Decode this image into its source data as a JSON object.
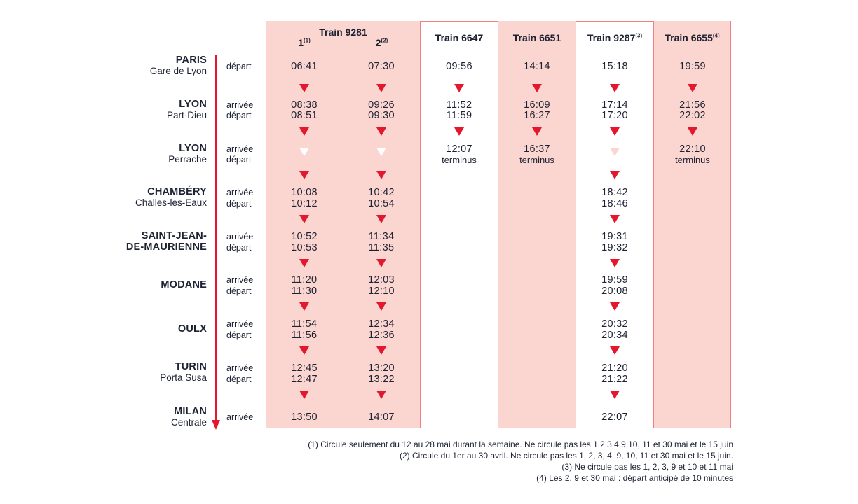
{
  "header": {
    "t9281": "Train 9281",
    "t9281_sub1": "1",
    "t9281_sub1_note": "(1)",
    "t9281_sub2": "2",
    "t9281_sub2_note": "(2)",
    "t6647": "Train 6647",
    "t6651": "Train 6651",
    "t9287": "Train 9287",
    "t9287_note": "(3)",
    "t6655": "Train 6655",
    "t6655_note": "(4)"
  },
  "labels": {
    "depart": "départ",
    "arrivee": "arrivée",
    "terminus": "terminus"
  },
  "stations": {
    "paris": {
      "name": "PARIS",
      "sub": "Gare de Lyon"
    },
    "lyon_pd": {
      "name": "LYON",
      "sub": "Part-Dieu"
    },
    "lyon_pe": {
      "name": "LYON",
      "sub": "Perrache"
    },
    "chambery": {
      "name": "CHAMBÉRY",
      "sub": "Challes-les-Eaux"
    },
    "stjean": {
      "name": "SAINT-JEAN-",
      "name2": "DE-MAURIENNE"
    },
    "modane": {
      "name": "MODANE"
    },
    "oulx": {
      "name": "OULX"
    },
    "turin": {
      "name": "TURIN",
      "sub": "Porta Susa"
    },
    "milan": {
      "name": "MILAN",
      "sub": "Centrale"
    }
  },
  "times": {
    "c1": {
      "paris_d": "06:41",
      "lyonpd_a": "08:38",
      "lyonpd_d": "08:51",
      "chambery_a": "10:08",
      "chambery_d": "10:12",
      "stjean_a": "10:52",
      "stjean_d": "10:53",
      "modane_a": "11:20",
      "modane_d": "11:30",
      "oulx_a": "11:54",
      "oulx_d": "11:56",
      "turin_a": "12:45",
      "turin_d": "12:47",
      "milan_a": "13:50"
    },
    "c2": {
      "paris_d": "07:30",
      "lyonpd_a": "09:26",
      "lyonpd_d": "09:30",
      "chambery_a": "10:42",
      "chambery_d": "10:54",
      "stjean_a": "11:34",
      "stjean_d": "11:35",
      "modane_a": "12:03",
      "modane_d": "12:10",
      "oulx_a": "12:34",
      "oulx_d": "12:36",
      "turin_a": "13:20",
      "turin_d": "13:22",
      "milan_a": "14:07"
    },
    "c3": {
      "paris_d": "09:56",
      "lyonpd_a": "11:52",
      "lyonpd_d": "11:59",
      "lyonpe_a": "12:07"
    },
    "c4": {
      "paris_d": "14:14",
      "lyonpd_a": "16:09",
      "lyonpd_d": "16:27",
      "lyonpe_a": "16:37"
    },
    "c5": {
      "paris_d": "15:18",
      "lyonpd_a": "17:14",
      "lyonpd_d": "17:20",
      "chambery_a": "18:42",
      "chambery_d": "18:46",
      "stjean_a": "19:31",
      "stjean_d": "19:32",
      "modane_a": "19:59",
      "modane_d": "20:08",
      "oulx_a": "20:32",
      "oulx_d": "20:34",
      "turin_a": "21:20",
      "turin_d": "21:22",
      "milan_a": "22:07"
    },
    "c6": {
      "paris_d": "19:59",
      "lyonpd_a": "21:56",
      "lyonpd_d": "22:02",
      "lyonpe_a": "22:10"
    }
  },
  "notes": [
    "(1) Circule seulement du 12 au 28 mai durant la semaine. Ne circule pas les 1,2,3,4,9,10, 11 et 30 mai et le 15 juin",
    "(2) Circule du 1er au 30 avril. Ne circule pas les 1, 2, 3, 4, 9, 10, 11 et 30 mai et le 15 juin.",
    "(3) Ne circule pas les 1, 2, 3, 9 et 10 et 11 mai",
    "(4) Les 2, 9 et 30 mai : départ anticipé de 10 minutes"
  ],
  "colors": {
    "accent": "#e3172d",
    "column_fill": "#fbd5d0",
    "text": "#1d2233"
  }
}
